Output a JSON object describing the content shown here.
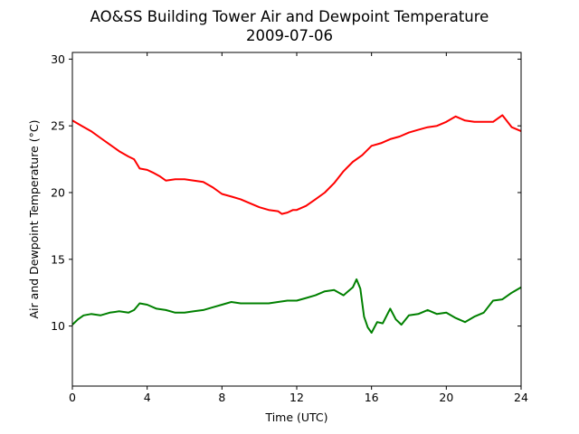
{
  "chart_data": {
    "type": "line",
    "title": "AO&SS Building Tower Air and Dewpoint Temperature",
    "subtitle": "2009-07-06",
    "xlabel": "Time (UTC)",
    "ylabel": "Air and Dewpoint Temperature (°C)",
    "xlim": [
      0,
      24
    ],
    "ylim": [
      5.5,
      30.5
    ],
    "xticks": [
      0,
      4,
      8,
      12,
      16,
      20,
      24
    ],
    "yticks": [
      10,
      15,
      20,
      25,
      30
    ],
    "grid": false,
    "series": [
      {
        "color": "#ff0000",
        "x": [
          0,
          0.5,
          1,
          1.5,
          2,
          2.5,
          3,
          3.3,
          3.6,
          4,
          4.3,
          4.7,
          5,
          5.5,
          6,
          6.5,
          7,
          7.5,
          8,
          8.5,
          9,
          9.5,
          10,
          10.5,
          11,
          11.2,
          11.5,
          11.8,
          12,
          12.5,
          13,
          13.5,
          14,
          14.5,
          15,
          15.5,
          16,
          16.5,
          17,
          17.5,
          18,
          18.5,
          19,
          19.5,
          20,
          20.5,
          21,
          21.5,
          22,
          22.5,
          23,
          23.5,
          24
        ],
        "y": [
          25.4,
          25.0,
          24.6,
          24.1,
          23.6,
          23.1,
          22.7,
          22.5,
          21.8,
          21.7,
          21.5,
          21.2,
          20.9,
          21.0,
          21.0,
          20.9,
          20.8,
          20.4,
          19.9,
          19.7,
          19.5,
          19.2,
          18.9,
          18.7,
          18.6,
          18.4,
          18.5,
          18.7,
          18.7,
          19.0,
          19.5,
          20.0,
          20.7,
          21.6,
          22.3,
          22.8,
          23.5,
          23.7,
          24.0,
          24.2,
          24.5,
          24.7,
          24.9,
          25.0,
          25.3,
          25.7,
          25.4,
          25.3,
          25.3,
          25.3,
          25.8,
          24.9,
          24.6
        ]
      },
      {
        "color": "#008000",
        "x": [
          0,
          0.3,
          0.6,
          1,
          1.5,
          2,
          2.5,
          3,
          3.3,
          3.6,
          4,
          4.5,
          5,
          5.5,
          6,
          6.5,
          7,
          7.5,
          8,
          8.5,
          9,
          9.5,
          10,
          10.5,
          11,
          11.5,
          12,
          12.5,
          13,
          13.5,
          14,
          14.5,
          15,
          15.2,
          15.4,
          15.6,
          15.8,
          16,
          16.3,
          16.6,
          17,
          17.3,
          17.6,
          18,
          18.5,
          19,
          19.5,
          20,
          20.5,
          21,
          21.5,
          22,
          22.5,
          23,
          23.5,
          24
        ],
        "y": [
          10.1,
          10.5,
          10.8,
          10.9,
          10.8,
          11.0,
          11.1,
          11.0,
          11.2,
          11.7,
          11.6,
          11.3,
          11.2,
          11.0,
          11.0,
          11.1,
          11.2,
          11.4,
          11.6,
          11.8,
          11.7,
          11.7,
          11.7,
          11.7,
          11.8,
          11.9,
          11.9,
          12.1,
          12.3,
          12.6,
          12.7,
          12.3,
          12.9,
          13.5,
          12.8,
          10.7,
          9.9,
          9.5,
          10.3,
          10.2,
          11.3,
          10.5,
          10.1,
          10.8,
          10.9,
          11.2,
          10.9,
          11.0,
          10.6,
          10.3,
          10.7,
          11.0,
          11.9,
          12.0,
          12.5,
          12.9
        ]
      }
    ]
  }
}
